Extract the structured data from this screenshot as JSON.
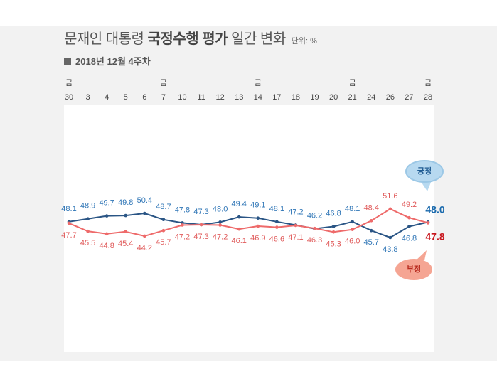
{
  "header": {
    "title_pre": "문재인 대통령",
    "title_bold": "국정수행 평가",
    "title_post": "일간 변화",
    "unit": "단위: %",
    "subtitle": "2018년 12월 4주차"
  },
  "chart_data": {
    "type": "line",
    "categories": [
      "30",
      "3",
      "4",
      "5",
      "6",
      "7",
      "10",
      "11",
      "12",
      "13",
      "14",
      "17",
      "18",
      "19",
      "20",
      "21",
      "24",
      "26",
      "27",
      "28"
    ],
    "category_weekdays": [
      "금",
      "",
      "",
      "",
      "",
      "금",
      "",
      "",
      "",
      "",
      "금",
      "",
      "",
      "",
      "",
      "금",
      "",
      "",
      "",
      "금"
    ],
    "series": [
      {
        "name": "긍정",
        "values": [
          48.1,
          48.9,
          49.7,
          49.8,
          50.4,
          48.7,
          47.8,
          47.3,
          48.0,
          49.4,
          49.1,
          48.1,
          47.2,
          46.2,
          46.8,
          48.1,
          45.7,
          43.8,
          46.8,
          48.0
        ],
        "color": "#2a5585",
        "label_color": "#2e75b6",
        "final_label_color": "#1a6aad",
        "callout_fill": "#b7d9f0",
        "callout_text_color": "#1f5b92"
      },
      {
        "name": "부정",
        "values": [
          47.7,
          45.5,
          44.8,
          45.4,
          44.2,
          45.7,
          47.2,
          47.3,
          47.2,
          46.1,
          46.9,
          46.6,
          47.1,
          46.3,
          45.3,
          46.0,
          48.4,
          51.6,
          49.2,
          47.8
        ],
        "color": "#ee6a6a",
        "label_color": "#e05a5a",
        "final_label_color": "#c8161d",
        "callout_fill": "#f5a593",
        "callout_text_color": "#b82a1e"
      }
    ],
    "grid": false
  }
}
